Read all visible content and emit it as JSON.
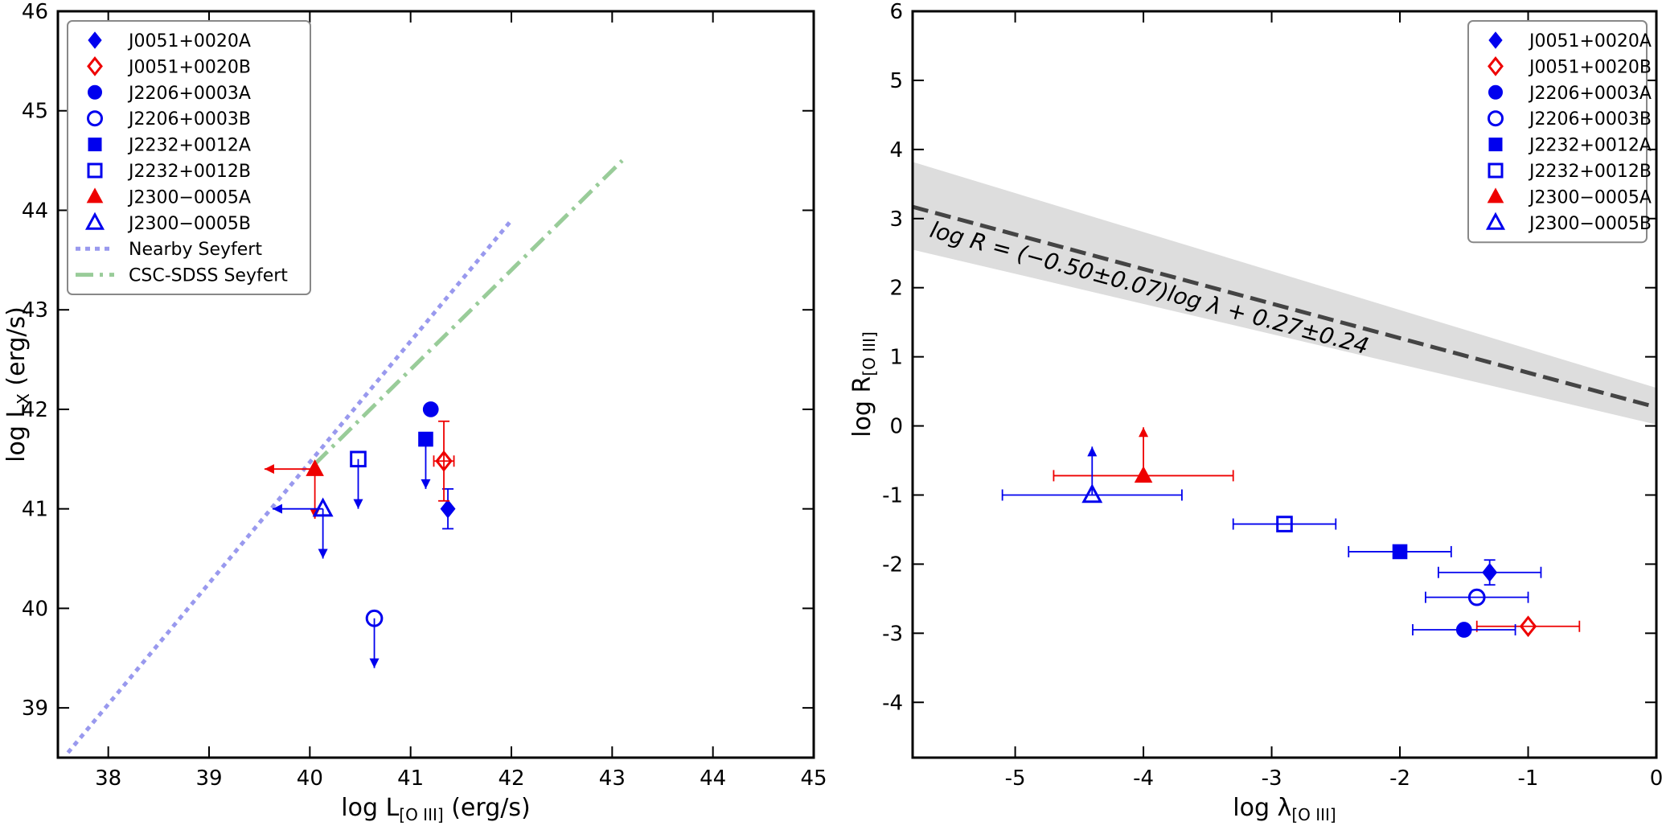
{
  "colors": {
    "blue": "#0000ee",
    "red": "#ee0000",
    "nearby": "#9999ee",
    "csc": "#99cc99",
    "band": "#dddddd",
    "dash": "#444444"
  },
  "chart_data": [
    {
      "type": "scatter",
      "xlabel_main": "log L",
      "xlabel_sub": "[O III]",
      "xlabel_tail": " (erg/s)",
      "ylabel_main": "log L",
      "ylabel_sub": "X",
      "ylabel_tail": " (erg/s)",
      "xlim": [
        37.5,
        45
      ],
      "ylim": [
        38.5,
        46
      ],
      "xticks": [
        38,
        39,
        40,
        41,
        42,
        43,
        44,
        45
      ],
      "yticks": [
        39,
        40,
        41,
        42,
        43,
        44,
        45,
        46
      ],
      "legend": "top-left",
      "lines": [
        {
          "name": "Nearby Seyfert",
          "style": "dotted",
          "color": "nearby",
          "x": [
            37.6,
            42.0
          ],
          "y": [
            38.55,
            43.9
          ]
        },
        {
          "name": "CSC-SDSS Seyfert",
          "style": "dashdot",
          "color": "csc",
          "x": [
            40.05,
            43.1
          ],
          "y": [
            41.45,
            44.5
          ]
        }
      ],
      "points": [
        {
          "name": "J0051+0020A",
          "marker": "diamond",
          "filled": true,
          "color": "blue",
          "x": 41.37,
          "y": 41.0,
          "yerr": [
            0.2,
            0.2
          ]
        },
        {
          "name": "J0051+0020B",
          "marker": "diamond",
          "filled": false,
          "color": "red",
          "x": 41.33,
          "y": 41.48,
          "xerr": [
            0.1,
            0.1
          ],
          "yerr": [
            0.4,
            0.4
          ]
        },
        {
          "name": "J2206+0003A",
          "marker": "circle",
          "filled": true,
          "color": "blue",
          "x": 41.2,
          "y": 42.0
        },
        {
          "name": "J2206+0003B",
          "marker": "circle",
          "filled": false,
          "color": "blue",
          "x": 40.64,
          "y": 39.9,
          "ulim": "y"
        },
        {
          "name": "J2232+0012A",
          "marker": "square",
          "filled": true,
          "color": "blue",
          "x": 41.15,
          "y": 41.7,
          "ulim": "y"
        },
        {
          "name": "J2232+0012B",
          "marker": "square",
          "filled": false,
          "color": "blue",
          "x": 40.48,
          "y": 41.5,
          "ulim": "y"
        },
        {
          "name": "J2300−0005A",
          "marker": "triangle",
          "filled": true,
          "color": "red",
          "x": 40.05,
          "y": 41.4,
          "ulim": "xy"
        },
        {
          "name": "J2300−0005B",
          "marker": "triangle",
          "filled": false,
          "color": "blue",
          "x": 40.13,
          "y": 41.0,
          "ulim": "xy"
        }
      ]
    },
    {
      "type": "scatter",
      "xlabel_main": "log λ",
      "xlabel_sub": "[O III]",
      "xlabel_tail": "",
      "ylabel_main": "log R",
      "ylabel_sub": "[O III]",
      "ylabel_tail": "",
      "xlim": [
        -5.8,
        0
      ],
      "ylim": [
        -4.8,
        6
      ],
      "xticks": [
        -5,
        -4,
        -3,
        -2,
        -1,
        0
      ],
      "yticks": [
        -4,
        -3,
        -2,
        -1,
        0,
        1,
        2,
        3,
        4,
        5,
        6
      ],
      "legend": "top-right",
      "relation": {
        "label": "log R = (−0.50±0.07)log λ + 0.27±0.24",
        "slope": -0.5,
        "intercept": 0.27,
        "band_low": [
          2.55,
          0.02
        ],
        "band_high": [
          3.82,
          0.55
        ]
      },
      "points": [
        {
          "name": "J0051+0020A",
          "marker": "diamond",
          "filled": true,
          "color": "blue",
          "x": -1.3,
          "y": -2.12,
          "xerr": [
            0.4,
            0.4
          ],
          "yerr": [
            0.18,
            0.18
          ]
        },
        {
          "name": "J0051+0020B",
          "marker": "diamond",
          "filled": false,
          "color": "red",
          "x": -1.0,
          "y": -2.9,
          "xerr": [
            0.4,
            0.4
          ]
        },
        {
          "name": "J2206+0003A",
          "marker": "circle",
          "filled": true,
          "color": "blue",
          "x": -1.5,
          "y": -2.95,
          "xerr": [
            0.4,
            0.4
          ]
        },
        {
          "name": "J2206+0003B",
          "marker": "circle",
          "filled": false,
          "color": "blue",
          "x": -1.4,
          "y": -2.48,
          "xerr": [
            0.4,
            0.4
          ]
        },
        {
          "name": "J2232+0012A",
          "marker": "square",
          "filled": true,
          "color": "blue",
          "x": -2.0,
          "y": -1.82,
          "xerr": [
            0.4,
            0.4
          ]
        },
        {
          "name": "J2232+0012B",
          "marker": "square",
          "filled": false,
          "color": "blue",
          "x": -2.9,
          "y": -1.42,
          "xerr": [
            0.4,
            0.4
          ]
        },
        {
          "name": "J2300−0005A",
          "marker": "triangle",
          "filled": true,
          "color": "red",
          "x": -4.0,
          "y": -0.72,
          "xerr": [
            0.7,
            0.7
          ],
          "llim": "y"
        },
        {
          "name": "J2300−0005B",
          "marker": "triangle",
          "filled": false,
          "color": "blue",
          "x": -4.4,
          "y": -1.0,
          "xerr": [
            0.7,
            0.7
          ],
          "llim": "y"
        }
      ]
    }
  ]
}
